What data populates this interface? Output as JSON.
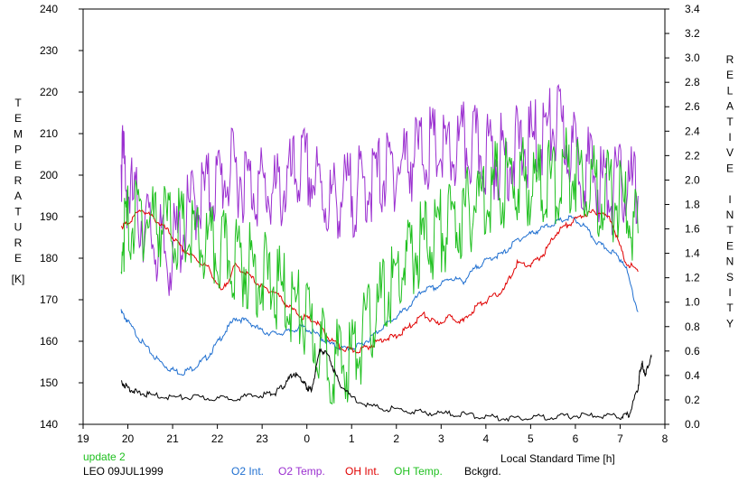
{
  "chart_data": {
    "type": "line",
    "xlabel": "Local Standard Time [h]",
    "ylabel_left": "TEMPERATURE",
    "ylabel_left_unit": "[K]",
    "ylabel_right": "RELATIVE INTENSITY",
    "xlim": [
      19,
      32
    ],
    "ylim_left": [
      140,
      240
    ],
    "ylim_right": [
      0,
      3.4
    ],
    "x_tick_values": [
      19,
      20,
      21,
      22,
      23,
      24,
      25,
      26,
      27,
      28,
      29,
      30,
      31,
      32
    ],
    "x_tick_labels": [
      "19",
      "20",
      "21",
      "22",
      "23",
      "0",
      "1",
      "2",
      "3",
      "4",
      "5",
      "6",
      "7",
      "8"
    ],
    "y_left_ticks": [
      140,
      150,
      160,
      170,
      180,
      190,
      200,
      210,
      220,
      230,
      240
    ],
    "y_right_ticks": [
      "0.0",
      "0.2",
      "0.4",
      "0.6",
      "0.8",
      "1.0",
      "1.2",
      "1.4",
      "1.6",
      "1.8",
      "2.0",
      "2.2",
      "2.4",
      "2.6",
      "2.8",
      "3.0",
      "3.2",
      "3.4"
    ],
    "grid": false,
    "annotations": {
      "status": "update 2",
      "station": "LEO 09JUL1999"
    },
    "legend_position": "bottom",
    "series": [
      {
        "name": "O2 Int.",
        "color": "#1f6fd0",
        "axis": "right",
        "style": "smooth",
        "x": [
          19.85,
          20.0,
          20.3,
          20.6,
          20.9,
          21.2,
          21.5,
          21.8,
          22.1,
          22.4,
          22.7,
          23.0,
          23.3,
          23.6,
          23.9,
          24.2,
          24.5,
          24.8,
          25.1,
          25.4,
          25.7,
          26.0,
          26.3,
          26.6,
          26.9,
          27.2,
          27.5,
          27.8,
          28.1,
          28.4,
          28.7,
          29.0,
          29.3,
          29.6,
          29.9,
          30.2,
          30.5,
          30.8,
          31.1,
          31.4
        ],
        "y": [
          0.92,
          0.84,
          0.68,
          0.55,
          0.46,
          0.42,
          0.47,
          0.56,
          0.72,
          0.87,
          0.84,
          0.76,
          0.74,
          0.76,
          0.8,
          0.74,
          0.66,
          0.62,
          0.63,
          0.7,
          0.8,
          0.88,
          0.97,
          1.1,
          1.12,
          1.2,
          1.17,
          1.29,
          1.36,
          1.4,
          1.51,
          1.56,
          1.61,
          1.66,
          1.69,
          1.62,
          1.48,
          1.42,
          1.32,
          0.92
        ]
      },
      {
        "name": "O2 Temp.",
        "color": "#9b30d0",
        "axis": "left",
        "style": "noisy",
        "x": [
          19.85,
          20.0,
          20.3,
          20.6,
          20.9,
          21.2,
          21.5,
          21.8,
          22.1,
          22.4,
          22.7,
          23.0,
          23.3,
          23.6,
          23.9,
          24.2,
          24.5,
          24.8,
          25.1,
          25.4,
          25.7,
          26.0,
          26.3,
          26.6,
          26.9,
          27.2,
          27.5,
          27.8,
          28.1,
          28.4,
          28.7,
          29.0,
          29.3,
          29.6,
          29.9,
          30.2,
          30.5,
          30.8,
          31.1,
          31.4
        ],
        "y": [
          205,
          196,
          190,
          184,
          180,
          186,
          194,
          196,
          199,
          201,
          198,
          197,
          195,
          198,
          202,
          198,
          193,
          195,
          196,
          198,
          200,
          202,
          204,
          206,
          206,
          204,
          207,
          206,
          205,
          204,
          206,
          207,
          210,
          212,
          206,
          202,
          199,
          196,
          198,
          195
        ]
      },
      {
        "name": "OH Int.",
        "color": "#e00000",
        "axis": "right",
        "style": "smooth",
        "x": [
          19.85,
          20.0,
          20.3,
          20.6,
          20.9,
          21.2,
          21.5,
          21.8,
          22.1,
          22.4,
          22.7,
          23.0,
          23.3,
          23.6,
          23.9,
          24.2,
          24.5,
          24.8,
          25.1,
          25.4,
          25.7,
          26.0,
          26.3,
          26.6,
          26.9,
          27.2,
          27.5,
          27.8,
          28.1,
          28.4,
          28.7,
          29.0,
          29.3,
          29.6,
          29.9,
          30.2,
          30.5,
          30.8,
          31.1,
          31.4
        ],
        "y": [
          1.62,
          1.65,
          1.76,
          1.68,
          1.58,
          1.44,
          1.36,
          1.28,
          1.08,
          1.3,
          1.22,
          1.12,
          1.08,
          0.96,
          0.88,
          0.84,
          0.7,
          0.62,
          0.6,
          0.64,
          0.7,
          0.72,
          0.8,
          0.9,
          0.82,
          0.88,
          0.84,
          0.97,
          1.03,
          1.1,
          1.32,
          1.3,
          1.4,
          1.58,
          1.65,
          1.72,
          1.74,
          1.68,
          1.34,
          1.25
        ]
      },
      {
        "name": "OH Temp.",
        "color": "#20c020",
        "axis": "left",
        "style": "noisy",
        "x": [
          19.85,
          20.0,
          20.3,
          20.6,
          20.9,
          21.2,
          21.5,
          21.8,
          22.1,
          22.4,
          22.7,
          23.0,
          23.3,
          23.6,
          23.9,
          24.2,
          24.5,
          24.8,
          25.1,
          25.4,
          25.7,
          26.0,
          26.3,
          26.6,
          26.9,
          27.2,
          27.5,
          27.8,
          28.1,
          28.4,
          28.7,
          29.0,
          29.3,
          29.6,
          29.9,
          30.2,
          30.5,
          30.8,
          31.1,
          31.4
        ],
        "y": [
          185,
          188,
          190,
          189,
          188,
          186,
          184,
          182,
          181,
          180,
          178,
          176,
          173,
          170,
          166,
          160,
          156,
          154,
          158,
          164,
          170,
          175,
          180,
          184,
          186,
          188,
          190,
          194,
          197,
          198,
          199,
          198,
          198,
          198,
          202,
          200,
          196,
          195,
          192,
          186
        ]
      },
      {
        "name": "Bckgrd.",
        "color": "#000000",
        "axis": "right",
        "style": "smooth",
        "x": [
          19.85,
          20.0,
          20.2,
          20.5,
          21.0,
          21.5,
          22.0,
          22.5,
          23.0,
          23.3,
          23.5,
          23.7,
          23.9,
          24.0,
          24.1,
          24.3,
          24.5,
          24.7,
          25.0,
          25.5,
          26.0,
          26.5,
          27.0,
          27.5,
          28.0,
          28.5,
          29.0,
          29.5,
          30.0,
          30.5,
          31.0,
          31.2,
          31.4,
          31.45,
          31.5,
          31.55,
          31.6,
          31.7
        ],
        "y": [
          0.35,
          0.3,
          0.26,
          0.24,
          0.22,
          0.22,
          0.21,
          0.22,
          0.24,
          0.26,
          0.32,
          0.42,
          0.36,
          0.3,
          0.28,
          0.62,
          0.55,
          0.35,
          0.22,
          0.14,
          0.12,
          0.1,
          0.09,
          0.08,
          0.06,
          0.05,
          0.06,
          0.06,
          0.07,
          0.07,
          0.06,
          0.08,
          0.3,
          0.45,
          0.5,
          0.4,
          0.45,
          0.55
        ]
      }
    ]
  }
}
